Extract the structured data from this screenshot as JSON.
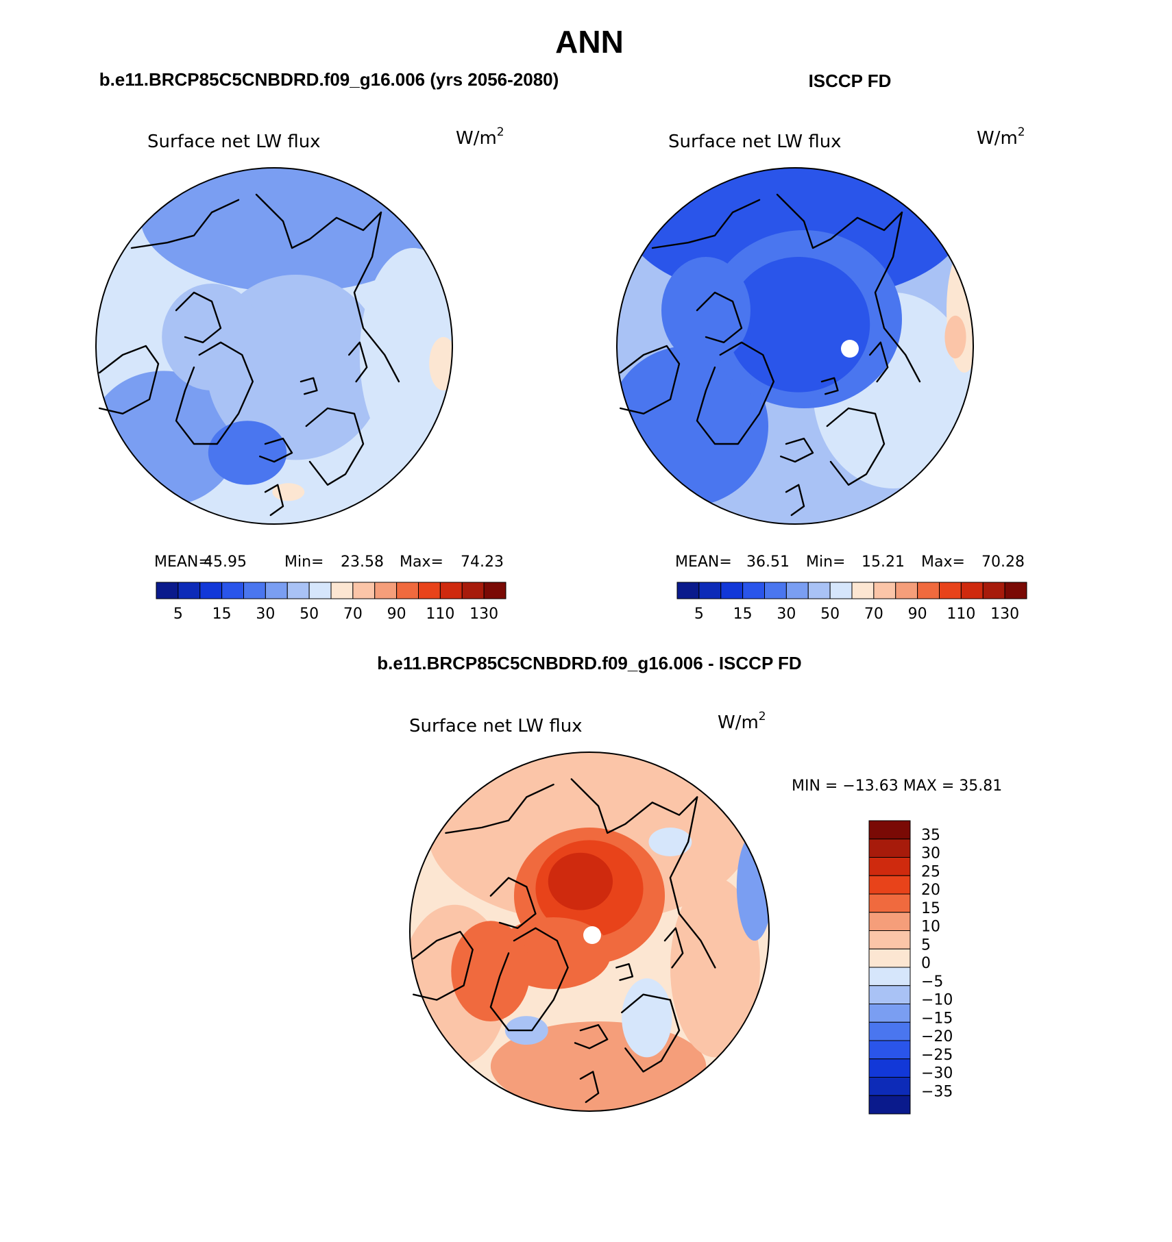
{
  "figure": {
    "title": "ANN",
    "difference_title": "b.e11.BRCP85C5CNBDRD.f09_g16.006 - ISCCP FD"
  },
  "colors": {
    "background": "#ffffff",
    "line": "#000000",
    "missing_fill": "#ffffff"
  },
  "icons": {
    "continents": "coastline-outline-icon",
    "pole": "pole-missing-dot-icon"
  },
  "chart_data": [
    {
      "type": "heatmap",
      "projection": "north-polar-stereographic",
      "panel_title": "b.e11.BRCP85C5CNBDRD.f09_g16.006 (yrs 2056-2080)",
      "variable": "Surface net LW flux",
      "units_text": "W/m",
      "units_exp": "2",
      "stats": {
        "mean_label": "MEAN=",
        "mean": "45.95",
        "min_label": "Min=",
        "min": "23.58",
        "max_label": "Max=",
        "max": "74.23"
      },
      "levels": [
        5,
        10,
        15,
        20,
        30,
        40,
        50,
        60,
        70,
        80,
        90,
        100,
        110,
        120,
        130
      ],
      "level_labels": [
        "5",
        "15",
        "30",
        "50",
        "70",
        "90",
        "110",
        "130"
      ],
      "colorbar_colors": [
        "#0a1a8c",
        "#0d2bb8",
        "#1238d8",
        "#2a55ea",
        "#4a76ef",
        "#7a9ef2",
        "#a9c2f5",
        "#d6e6fb",
        "#fce6d2",
        "#fbc5a8",
        "#f59e7a",
        "#f06a3e",
        "#e8431a",
        "#cf2a0e",
        "#a71b0b",
        "#7a0a05"
      ],
      "field_pattern": "model",
      "pole_missing": false
    },
    {
      "type": "heatmap",
      "projection": "north-polar-stereographic",
      "panel_title": "ISCCP FD",
      "variable": "Surface net LW flux",
      "units_text": "W/m",
      "units_exp": "2",
      "stats": {
        "mean_label": "MEAN=",
        "mean": "36.51",
        "min_label": "Min=",
        "min": "15.21",
        "max_label": "Max=",
        "max": "70.28"
      },
      "levels": [
        5,
        10,
        15,
        20,
        30,
        40,
        50,
        60,
        70,
        80,
        90,
        100,
        110,
        120,
        130
      ],
      "level_labels": [
        "5",
        "15",
        "30",
        "50",
        "70",
        "90",
        "110",
        "130"
      ],
      "colorbar_colors": [
        "#0a1a8c",
        "#0d2bb8",
        "#1238d8",
        "#2a55ea",
        "#4a76ef",
        "#7a9ef2",
        "#a9c2f5",
        "#d6e6fb",
        "#fce6d2",
        "#fbc5a8",
        "#f59e7a",
        "#f06a3e",
        "#e8431a",
        "#cf2a0e",
        "#a71b0b",
        "#7a0a05"
      ],
      "field_pattern": "obs",
      "pole_missing": true
    },
    {
      "type": "heatmap",
      "projection": "north-polar-stereographic",
      "panel_title": "b.e11.BRCP85C5CNBDRD.f09_g16.006 - ISCCP FD",
      "variable": "Surface net LW flux",
      "units_text": "W/m",
      "units_exp": "2",
      "stats": {
        "range_text": "MIN = −13.63 MAX =  35.81",
        "min": -13.63,
        "max": 35.81
      },
      "levels": [
        35,
        30,
        25,
        20,
        15,
        10,
        5,
        0,
        -5,
        -10,
        -15,
        -20,
        -25,
        -30,
        -35
      ],
      "level_labels": [
        "35",
        "30",
        "25",
        "20",
        "15",
        "10",
        "5",
        "0",
        "−5",
        "−10",
        "−15",
        "−20",
        "−25",
        "−30",
        "−35"
      ],
      "colorbar_colors": [
        "#7a0a05",
        "#a71b0b",
        "#cf2a0e",
        "#e8431a",
        "#f06a3e",
        "#f59e7a",
        "#fbc5a8",
        "#fce6d2",
        "#d6e6fb",
        "#a9c2f5",
        "#7a9ef2",
        "#4a76ef",
        "#2a55ea",
        "#1238d8",
        "#0d2bb8",
        "#0a1a8c"
      ],
      "field_pattern": "diff",
      "pole_missing": true
    }
  ]
}
